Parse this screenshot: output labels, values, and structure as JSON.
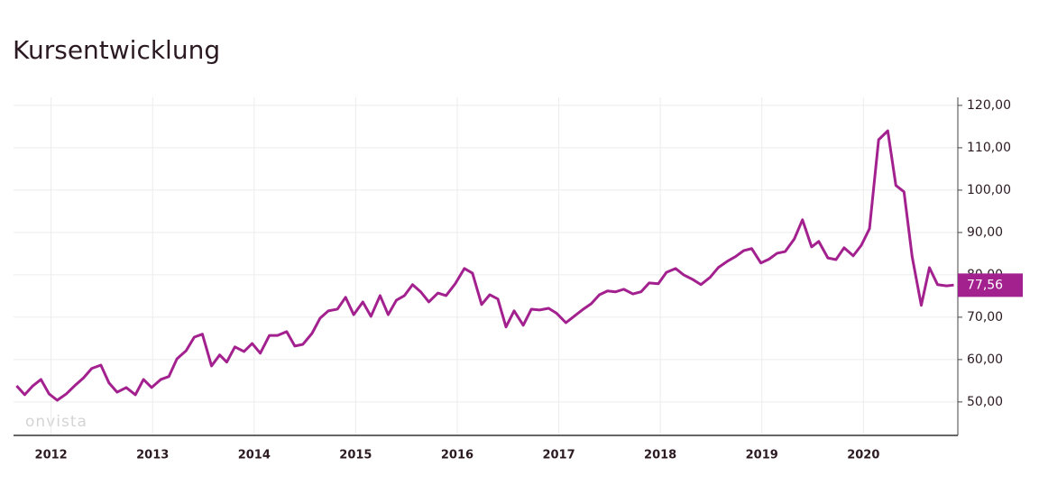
{
  "chart_data": {
    "type": "line",
    "title": "Kursentwicklung",
    "watermark": "onvista",
    "color": "#a3218f",
    "x": [
      2011.66,
      2011.74,
      2011.82,
      2011.9,
      2011.98,
      2012.06,
      2012.15,
      2012.24,
      2012.32,
      2012.4,
      2012.49,
      2012.57,
      2012.65,
      2012.74,
      2012.83,
      2012.91,
      2012.99,
      2013.08,
      2013.16,
      2013.24,
      2013.33,
      2013.41,
      2013.49,
      2013.58,
      2013.66,
      2013.73,
      2013.81,
      2013.9,
      2013.98,
      2014.06,
      2014.15,
      2014.23,
      2014.32,
      2014.4,
      2014.48,
      2014.57,
      2014.65,
      2014.73,
      2014.82,
      2014.9,
      2014.98,
      2015.07,
      2015.15,
      2015.24,
      2015.32,
      2015.4,
      2015.48,
      2015.56,
      2015.64,
      2015.72,
      2015.81,
      2015.89,
      2015.98,
      2016.07,
      2016.15,
      2016.24,
      2016.32,
      2016.4,
      2016.48,
      2016.56,
      2016.65,
      2016.73,
      2016.81,
      2016.9,
      2016.98,
      2017.07,
      2017.15,
      2017.23,
      2017.32,
      2017.4,
      2017.48,
      2017.56,
      2017.64,
      2017.73,
      2017.81,
      2017.89,
      2017.98,
      2018.06,
      2018.15,
      2018.23,
      2018.32,
      2018.4,
      2018.49,
      2018.57,
      2018.66,
      2018.74,
      2018.82,
      2018.9,
      2018.99,
      2019.07,
      2019.15,
      2019.23,
      2019.32,
      2019.4,
      2019.49,
      2019.56,
      2019.65,
      2019.73,
      2019.81,
      2019.9,
      2019.98,
      2020.06,
      2020.15,
      2020.24,
      2020.32,
      2020.4,
      2020.48,
      2020.57,
      2020.65,
      2020.73,
      2020.82,
      2020.89
    ],
    "values": [
      53.8,
      51.7,
      53.8,
      55.3,
      51.9,
      50.4,
      51.9,
      54.0,
      55.7,
      57.9,
      58.7,
      54.5,
      52.3,
      53.4,
      51.7,
      55.3,
      53.4,
      55.3,
      56.0,
      60.2,
      62.1,
      65.3,
      66.0,
      58.5,
      61.1,
      59.4,
      63.0,
      61.9,
      63.8,
      61.5,
      65.7,
      65.7,
      66.6,
      63.2,
      63.6,
      66.2,
      69.8,
      71.5,
      71.9,
      74.7,
      70.6,
      73.6,
      70.2,
      75.1,
      70.6,
      74.0,
      75.1,
      77.7,
      76.0,
      73.6,
      75.7,
      75.1,
      77.9,
      81.5,
      80.4,
      73.0,
      75.3,
      74.3,
      67.7,
      71.5,
      68.1,
      71.9,
      71.7,
      72.1,
      70.9,
      68.7,
      70.2,
      71.7,
      73.2,
      75.3,
      76.2,
      76.0,
      76.6,
      75.5,
      76.0,
      78.1,
      77.9,
      80.6,
      81.5,
      80.0,
      78.9,
      77.7,
      79.4,
      81.7,
      83.2,
      84.3,
      85.7,
      86.2,
      82.8,
      83.7,
      85.1,
      85.5,
      88.5,
      93.0,
      86.6,
      87.9,
      84.0,
      83.6,
      86.4,
      84.5,
      87.0,
      90.9,
      111.9,
      114.0,
      101.1,
      99.6,
      84.3,
      72.8,
      81.7,
      77.7,
      77.4,
      77.6
    ],
    "current": {
      "value": 77.56,
      "label": "77,56"
    },
    "xlim": [
      2011.63,
      2020.93
    ],
    "xticks": [
      2012,
      2013,
      2014,
      2015,
      2016,
      2017,
      2018,
      2019,
      2020
    ],
    "ylim": [
      42.1,
      121.9
    ],
    "yticks": [
      {
        "value": 50,
        "label": "50,00"
      },
      {
        "value": 60,
        "label": "60,00"
      },
      {
        "value": 70,
        "label": "70,00"
      },
      {
        "value": 80,
        "label": "80,00"
      },
      {
        "value": 90,
        "label": "90,00"
      },
      {
        "value": 100,
        "label": "100,00"
      },
      {
        "value": 110,
        "label": "110,00"
      },
      {
        "value": 120,
        "label": "120,00"
      }
    ],
    "grid": true
  }
}
